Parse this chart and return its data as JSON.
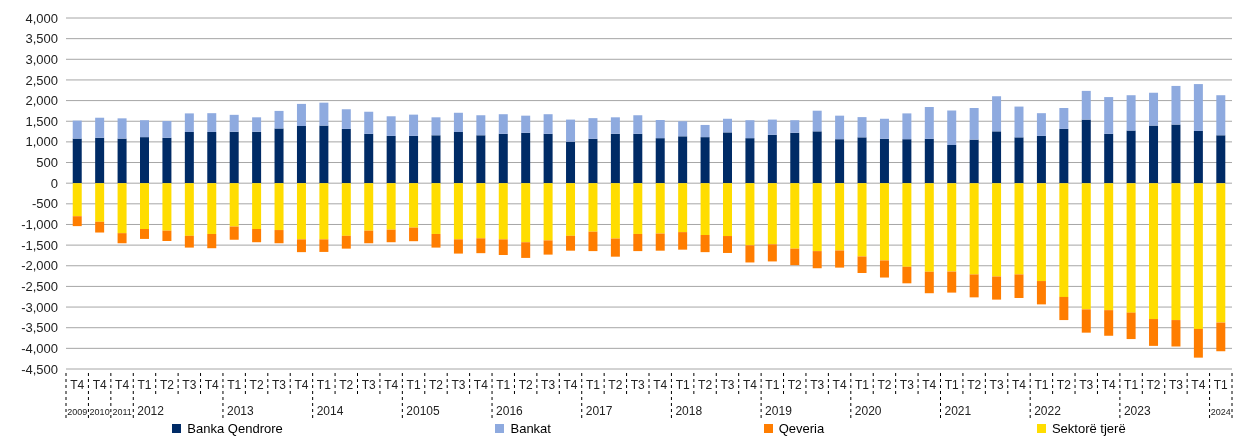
{
  "chart_data": {
    "type": "bar",
    "stacked": true,
    "grid": "y",
    "legend": "bottom",
    "categories": [
      "T4\n2009",
      "T4\n2010",
      "T4\n2011",
      "T1\n2012",
      "T2",
      "T3",
      "T4",
      "T1\n2013",
      "T2",
      "T3",
      "T4",
      "T1\n2014",
      "T2",
      "T3",
      "T4",
      "T1\n20105",
      "T2",
      "T3",
      "T4",
      "T1\n2016",
      "T2",
      "T3",
      "T4",
      "T1\n2017",
      "T2",
      "T3",
      "T4",
      "T1\n2018",
      "T2",
      "T3",
      "T4",
      "T1\n2019",
      "T2",
      "T3",
      "T4",
      "T1\n2020",
      "T2",
      "T3",
      "T4",
      "T1\n2021",
      "T2",
      "T3",
      "T4",
      "T1\n2022",
      "T2",
      "T3",
      "T4",
      "T1\n2023",
      "T2",
      "T3",
      "T4",
      "T1\n2024"
    ],
    "series": [
      {
        "name": "Banka Qendrore",
        "color": "#002b66",
        "values": [
          1080,
          1100,
          1080,
          1115,
          1100,
          1240,
          1240,
          1245,
          1245,
          1325,
          1385,
          1395,
          1315,
          1195,
          1145,
          1145,
          1160,
          1240,
          1160,
          1195,
          1220,
          1195,
          1005,
          1075,
          1195,
          1195,
          1090,
          1135,
          1115,
          1230,
          1090,
          1170,
          1220,
          1255,
          1065,
          1110,
          1075,
          1065,
          1075,
          925,
          1055,
          1255,
          1110,
          1145,
          1315,
          1540,
          1195,
          1275,
          1395,
          1420,
          1265,
          1160
        ]
      },
      {
        "name": "Sektorë tjerë",
        "color": "#ffdd00",
        "values": [
          -800,
          -935,
          -1210,
          -1110,
          -1150,
          -1275,
          -1230,
          -1050,
          -1110,
          -1135,
          -1360,
          -1360,
          -1275,
          -1150,
          -1125,
          -1075,
          -1230,
          -1360,
          -1335,
          -1360,
          -1430,
          -1385,
          -1275,
          -1175,
          -1340,
          -1230,
          -1220,
          -1185,
          -1255,
          -1280,
          -1505,
          -1480,
          -1585,
          -1645,
          -1630,
          -1775,
          -1870,
          -2025,
          -2145,
          -2140,
          -2210,
          -2260,
          -2210,
          -2370,
          -2755,
          -3055,
          -3075,
          -3135,
          -3290,
          -3315,
          -3530,
          -3375
        ]
      },
      {
        "name": "Qeveria",
        "color": "#ff7d00",
        "values": [
          -240,
          -260,
          -245,
          -240,
          -250,
          -285,
          -345,
          -320,
          -320,
          -320,
          -310,
          -305,
          -310,
          -305,
          -305,
          -330,
          -330,
          -345,
          -360,
          -380,
          -380,
          -345,
          -360,
          -470,
          -440,
          -415,
          -415,
          -425,
          -415,
          -410,
          -415,
          -415,
          -400,
          -415,
          -415,
          -400,
          -415,
          -400,
          -520,
          -510,
          -555,
          -560,
          -570,
          -565,
          -560,
          -565,
          -620,
          -640,
          -650,
          -640,
          -695,
          -695
        ]
      },
      {
        "name": "Bankat",
        "color": "#8eaadf",
        "values": [
          435,
          485,
          490,
          410,
          405,
          450,
          455,
          410,
          350,
          425,
          535,
          555,
          475,
          535,
          475,
          515,
          435,
          465,
          485,
          475,
          415,
          475,
          535,
          500,
          400,
          450,
          440,
          365,
          295,
          330,
          435,
          370,
          305,
          500,
          570,
          490,
          485,
          625,
          770,
          835,
          765,
          850,
          745,
          550,
          505,
          695,
          890,
          855,
          795,
          935,
          1135,
          970
        ]
      }
    ],
    "ylim": [
      -4500,
      4000
    ],
    "yticks": [
      {
        "value": -4500,
        "label": "-4,500"
      },
      {
        "value": -4000,
        "label": "-4,000"
      },
      {
        "value": -3500,
        "label": "-3,500"
      },
      {
        "value": -3000,
        "label": "-3,000"
      },
      {
        "value": -2500,
        "label": "-2,500"
      },
      {
        "value": -2000,
        "label": "-2,000"
      },
      {
        "value": -1500,
        "label": "-1,500"
      },
      {
        "value": -1000,
        "label": "-1,000"
      },
      {
        "value": -500,
        "label": "-500"
      },
      0,
      500,
      {
        "value": 1000,
        "label": "1,000"
      },
      {
        "value": 1500,
        "label": "1,500"
      },
      {
        "value": 2000,
        "label": "2,000"
      },
      {
        "value": 2500,
        "label": "2,500"
      },
      {
        "value": 3000,
        "label": "3,000"
      },
      {
        "value": 3500,
        "label": "3,500"
      },
      {
        "value": 4000,
        "label": "4,000"
      }
    ]
  }
}
